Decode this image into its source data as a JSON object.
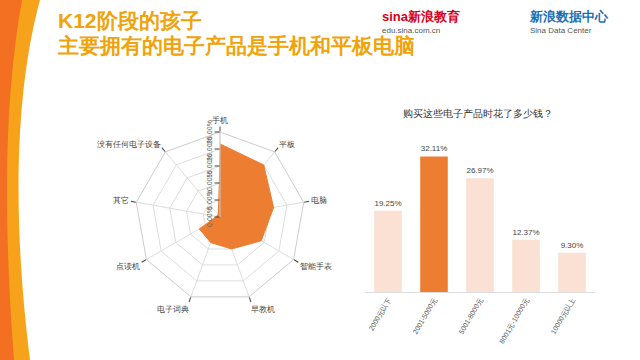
{
  "header": {
    "title": [
      "K12阶段的孩子",
      "主要拥有的电子产品是手机和平板电脑"
    ],
    "logos": [
      {
        "lines": [
          "sina新浪教育",
          "edu.sina.com.cn"
        ]
      },
      {
        "lines": [
          "新浪数据中心",
          "Sina Data Center"
        ]
      }
    ]
  },
  "chart_data": [
    {
      "type": "radar",
      "categories": [
        "手机",
        "平板",
        "电脑",
        "智能手表",
        "早教机",
        "电子词典",
        "点读机",
        "其它",
        "没有任何电子设备"
      ],
      "values": [
        21.5,
        20,
        16,
        14,
        10,
        8,
        7,
        1,
        1
      ],
      "color": "#ed7d31",
      "ylim": [
        0,
        25
      ],
      "yticks": [
        {
          "value": 0,
          "label": "0.00%"
        },
        {
          "value": 5,
          "label": "5.00%"
        },
        {
          "value": 10,
          "label": "10.00%"
        },
        {
          "value": 15,
          "label": "15.00%"
        },
        {
          "value": 20,
          "label": "20.00%"
        },
        {
          "value": 25,
          "label": "25.00%"
        }
      ],
      "grid": true
    },
    {
      "type": "bar",
      "title": "购买这些电子产品时花了多少钱？",
      "categories": [
        "2000元以下",
        "2001-5000元",
        "5001-8000元",
        "8001元-10000元",
        "10000元以上"
      ],
      "values": [
        19.25,
        32.11,
        26.97,
        12.37,
        9.3
      ],
      "value_labels": [
        "19.25%",
        "32.11%",
        "26.97%",
        "12.37%",
        "9.30%"
      ],
      "colors": [
        "#fbe0d4",
        "#ed7d31",
        "#fbe0d4",
        "#fbe0d4",
        "#fbe0d4"
      ],
      "ylim": [
        0,
        36
      ],
      "data_labels": true,
      "tick_labels": "x",
      "grid": false
    }
  ]
}
